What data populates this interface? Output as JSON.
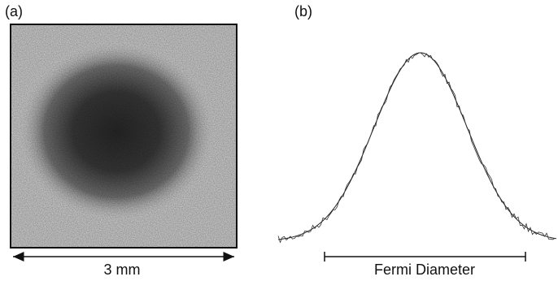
{
  "panels": [
    {
      "label": "(a)",
      "scale_label": "3 mm"
    },
    {
      "label": "(b)",
      "scale_label": "Fermi Diameter"
    }
  ]
}
